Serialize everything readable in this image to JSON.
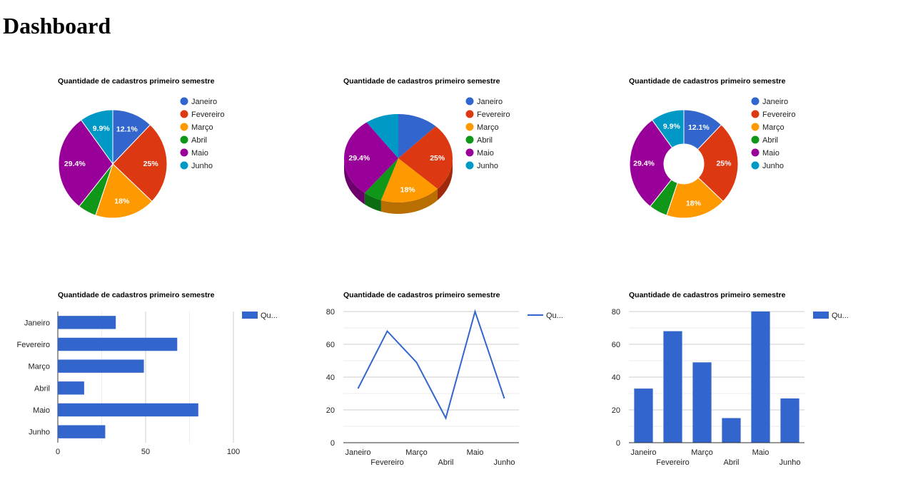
{
  "page_title": "Dashboard",
  "colors": [
    "#3366cc",
    "#dc3912",
    "#ff9900",
    "#109618",
    "#990099",
    "#0099c6"
  ],
  "chart_data": [
    {
      "id": "pie",
      "type": "pie",
      "title": "Quantidade de cadastros primeiro semestre",
      "categories": [
        "Janeiro",
        "Fevereiro",
        "Março",
        "Abril",
        "Maio",
        "Junho"
      ],
      "values": [
        33,
        68,
        49,
        15,
        80,
        27
      ],
      "slice_labels": [
        "12.1%",
        "25%",
        "18%",
        "",
        "29.4%",
        "9.9%"
      ],
      "legend_position": "right"
    },
    {
      "id": "pie3d",
      "type": "pie",
      "title": "Quantidade de cadastros primeiro semestre",
      "categories": [
        "Janeiro",
        "Fevereiro",
        "Março",
        "Abril",
        "Maio",
        "Junho"
      ],
      "values": [
        33,
        68,
        49,
        15,
        80,
        27
      ],
      "slice_labels": [
        "",
        "25%",
        "18%",
        "",
        "29.4%",
        ""
      ],
      "style": "3d",
      "legend_position": "right"
    },
    {
      "id": "donut",
      "type": "pie",
      "title": "Quantidade de cadastros primeiro semestre",
      "categories": [
        "Janeiro",
        "Fevereiro",
        "Março",
        "Abril",
        "Maio",
        "Junho"
      ],
      "values": [
        33,
        68,
        49,
        15,
        80,
        27
      ],
      "slice_labels": [
        "12.1%",
        "25%",
        "18%",
        "",
        "29.4%",
        "9.9%"
      ],
      "style": "donut",
      "legend_position": "right"
    },
    {
      "id": "hbar",
      "type": "bar",
      "orientation": "horizontal",
      "title": "Quantidade de cadastros primeiro semestre",
      "categories": [
        "Janeiro",
        "Fevereiro",
        "Março",
        "Abril",
        "Maio",
        "Junho"
      ],
      "series": [
        {
          "name": "Qu...",
          "values": [
            33,
            68,
            49,
            15,
            80,
            27
          ]
        }
      ],
      "xlim": [
        0,
        100
      ],
      "ticks": [
        0,
        50,
        100
      ],
      "legend_position": "right"
    },
    {
      "id": "line",
      "type": "line",
      "title": "Quantidade de cadastros primeiro semestre",
      "categories": [
        "Janeiro",
        "Fevereiro",
        "Março",
        "Abril",
        "Maio",
        "Junho"
      ],
      "series": [
        {
          "name": "Qu...",
          "values": [
            33,
            68,
            49,
            15,
            80,
            27
          ]
        }
      ],
      "ylim": [
        0,
        80
      ],
      "ticks": [
        0,
        20,
        40,
        60,
        80
      ],
      "legend_position": "right"
    },
    {
      "id": "vbar",
      "type": "bar",
      "orientation": "vertical",
      "title": "Quantidade de cadastros primeiro semestre",
      "categories": [
        "Janeiro",
        "Fevereiro",
        "Março",
        "Abril",
        "Maio",
        "Junho"
      ],
      "series": [
        {
          "name": "Qu...",
          "values": [
            33,
            68,
            49,
            15,
            80,
            27
          ]
        }
      ],
      "ylim": [
        0,
        80
      ],
      "ticks": [
        0,
        20,
        40,
        60,
        80
      ],
      "legend_position": "right"
    }
  ]
}
